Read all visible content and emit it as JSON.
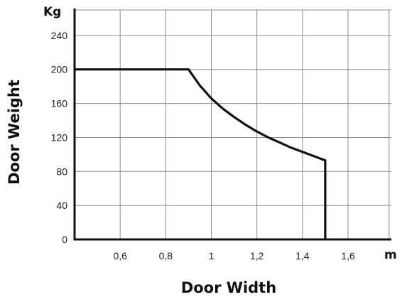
{
  "chart_data": {
    "type": "line",
    "title": "",
    "xlabel": "Door Width",
    "ylabel": "Door Weight",
    "x_unit": "m",
    "y_unit": "Kg",
    "xlim": [
      0.4,
      1.79
    ],
    "ylim": [
      0,
      270
    ],
    "x_ticks": [
      0.6,
      0.8,
      1,
      1.2,
      1.4,
      1.6
    ],
    "x_tick_labels": [
      "0,6",
      "0,8",
      "1",
      "1,2",
      "1,4",
      "1,6"
    ],
    "y_ticks": [
      0,
      40,
      80,
      120,
      160,
      200,
      240
    ],
    "y_tick_labels": [
      "0",
      "40",
      "80",
      "120",
      "160",
      "200",
      "240"
    ],
    "x_gridlines": [
      0.6,
      0.8,
      1,
      1.2,
      1.4,
      1.6,
      1.78
    ],
    "grid": true,
    "series": [
      {
        "x": [
          0.4,
          0.9,
          0.95,
          1.0,
          1.05,
          1.1,
          1.15,
          1.2,
          1.25,
          1.3,
          1.35,
          1.4,
          1.45,
          1.5,
          1.5
        ],
        "y": [
          200,
          200,
          181,
          166,
          154,
          144,
          135,
          127,
          120,
          114,
          108,
          103,
          98,
          93,
          0
        ]
      }
    ],
    "colors": {
      "line": "#111111",
      "axes": "#111111",
      "grid": "#8c8c8c",
      "text": "#222222"
    }
  }
}
